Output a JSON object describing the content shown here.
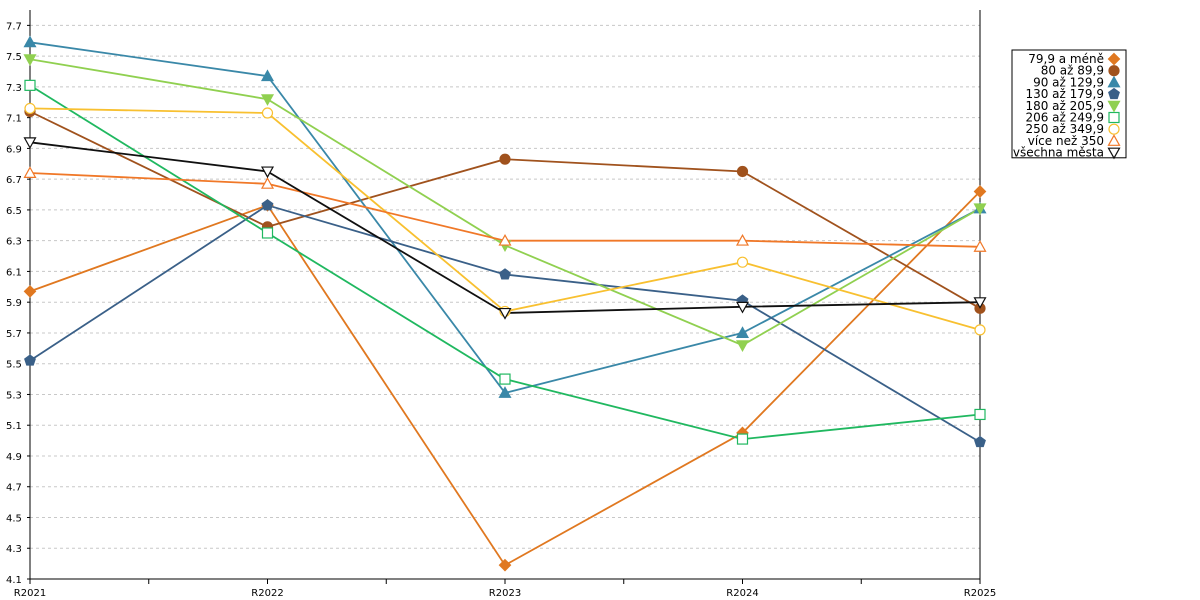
{
  "chart_data": {
    "type": "line",
    "categories": [
      "R2021",
      "R2022",
      "R2023",
      "R2024",
      "R2025"
    ],
    "ylim": [
      4.1,
      7.8
    ],
    "y_ticks": [
      "4.1",
      "4.3",
      "4.5",
      "4.7",
      "4.9",
      "5.1",
      "5.3",
      "5.5",
      "5.7",
      "5.9",
      "6.1",
      "6.3",
      "6.5",
      "6.7",
      "6.9",
      "7.1",
      "7.3",
      "7.5",
      "7.7"
    ],
    "grid": "horizontal dashed",
    "legend_position": "right",
    "series": [
      {
        "name": "79,9 a méně",
        "values": [
          5.97,
          6.53,
          4.19,
          5.05,
          6.62
        ],
        "color": "#e07820",
        "marker": "diamond"
      },
      {
        "name": "80 až 89,9",
        "values": [
          7.14,
          6.39,
          6.83,
          6.75,
          5.86
        ],
        "color": "#a0521d",
        "marker": "circle"
      },
      {
        "name": "90 až 129,9",
        "values": [
          7.59,
          7.37,
          5.31,
          5.7,
          6.51
        ],
        "color": "#3a88a8",
        "marker": "triangle-up"
      },
      {
        "name": "130 až 179,9",
        "values": [
          5.52,
          6.53,
          6.08,
          5.91,
          4.99
        ],
        "color": "#3a6088",
        "marker": "pentagon"
      },
      {
        "name": "180 až 205,9",
        "values": [
          7.48,
          7.22,
          6.27,
          5.62,
          6.51
        ],
        "color": "#90d050",
        "marker": "triangle-down"
      },
      {
        "name": "206 až 249,9",
        "values": [
          7.31,
          6.35,
          5.4,
          5.01,
          5.17
        ],
        "color": "#20b860",
        "marker": "square-open"
      },
      {
        "name": "250 až 349,9",
        "values": [
          7.16,
          7.13,
          5.84,
          6.16,
          5.72
        ],
        "color": "#f8c030",
        "marker": "circle-open"
      },
      {
        "name": "více než 350",
        "values": [
          6.74,
          6.67,
          6.3,
          6.3,
          6.26
        ],
        "color": "#f07828",
        "marker": "triangle-up-open"
      },
      {
        "name": "všechna města",
        "values": [
          6.94,
          6.75,
          5.83,
          5.87,
          5.9
        ],
        "color": "#101010",
        "marker": "triangle-down-open"
      }
    ]
  }
}
